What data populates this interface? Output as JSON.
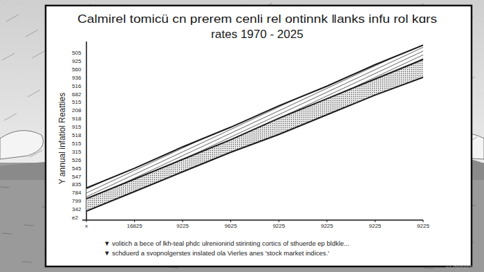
{
  "chart_data": {
    "type": "line",
    "title": "Calmirel tomicü cn prerem cenli rel ontinnk  ‖anks infu rol kɑrs",
    "subtitle": "rates 1970 - 2025",
    "y_label": "Y annual infatiol Reatties",
    "categories": [
      "x",
      "16825",
      "9225",
      "9625",
      "9225",
      "9225",
      "9225",
      "9225"
    ],
    "series": [
      {
        "color": "#1a1a1a",
        "values": [
          18,
          29,
          41,
          52,
          64,
          75,
          87,
          98
        ]
      },
      {
        "color": "#1a1a1a",
        "values": [
          12,
          23,
          34,
          45,
          57,
          68,
          79,
          90
        ]
      },
      {
        "color": "#1a1a1a",
        "values": [
          5,
          16,
          27,
          38,
          48,
          59,
          70,
          80
        ]
      }
    ],
    "ylim": [
      0,
      100
    ],
    "tick_labels": "x",
    "annotations": [
      "505",
      "925",
      "560",
      "936",
      "516",
      "682",
      "515",
      "208",
      "918",
      "915",
      "518",
      "515",
      "315",
      "526",
      "545",
      "547",
      "835",
      "784",
      "799",
      "342",
      "e2"
    ],
    "footnotes": [
      "▼ volitich a bece of lkh-teal phdc ulrenionirid stirinting cortics of sthuerde ep bldkle...",
      "▼ schduerd a svopnolgerstes inslated ola Vierles anes  'stock market indices.'"
    ],
    "watermark": "AI-generated"
  }
}
